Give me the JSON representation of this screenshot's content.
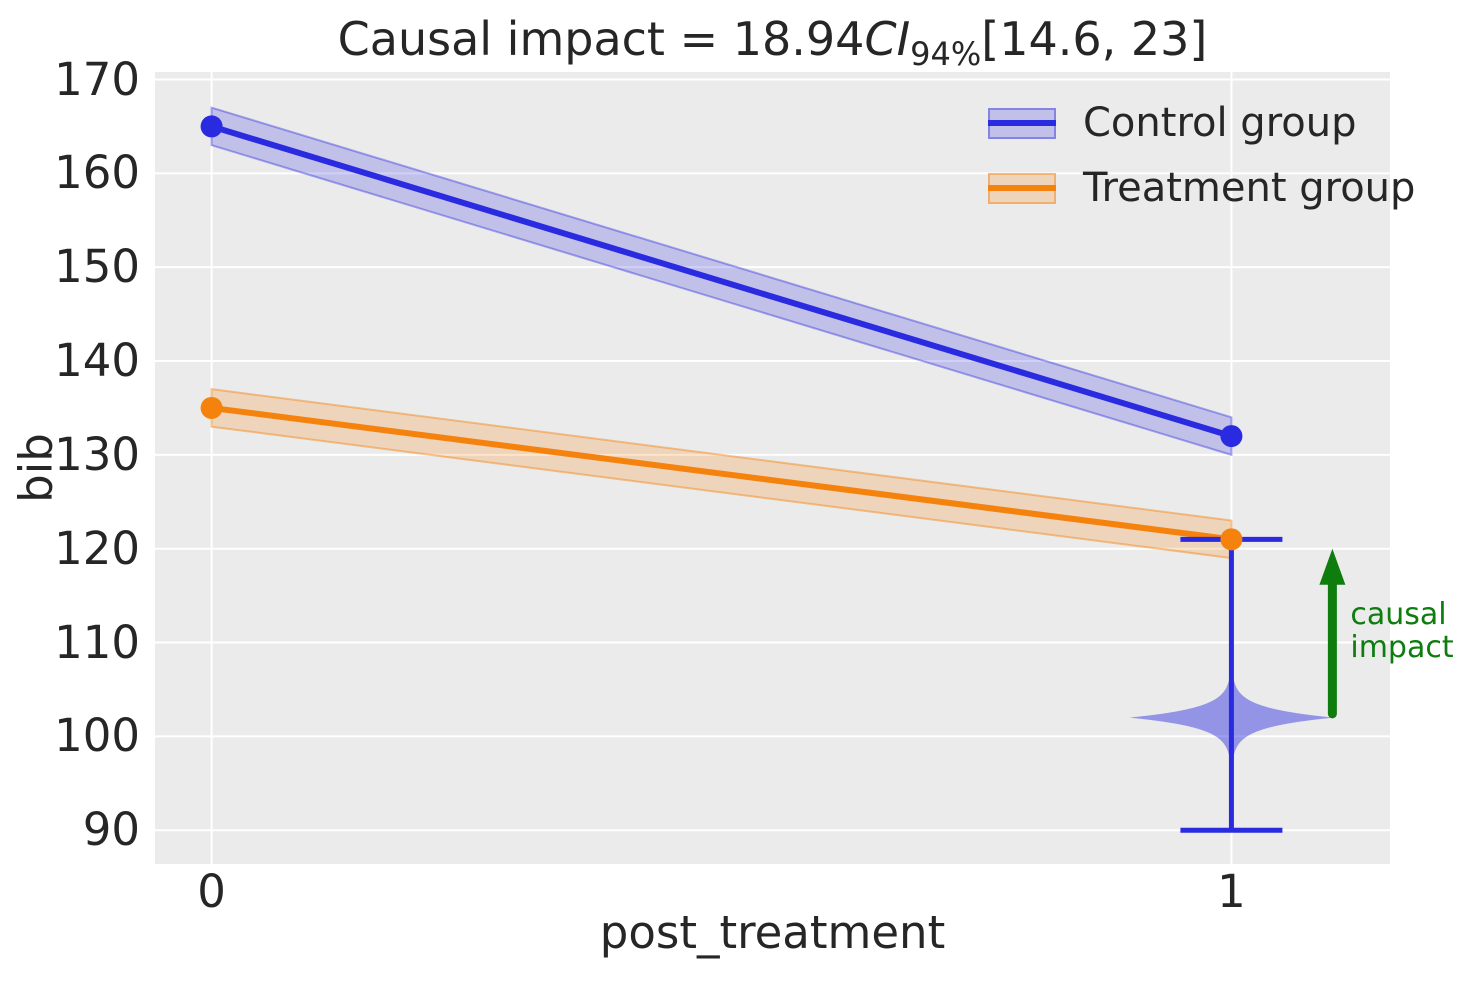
{
  "figure": {
    "background": "#ffffff"
  },
  "colors": {
    "axes_background": "#ebebeb",
    "grid": "#ffffff",
    "text": "#262626"
  },
  "chart_data": {
    "type": "line",
    "title": {
      "prefix": "Causal impact = 18.94",
      "ci": "CI",
      "ci_subscript": "94%",
      "interval": "[14.6, 23]"
    },
    "xlabel": "post_treatment",
    "ylabel": "bib",
    "xlim": [
      -0.0555,
      1.1555
    ],
    "ylim": [
      86.4,
      170.8
    ],
    "x_ticks": [
      0,
      1
    ],
    "y_ticks": [
      90,
      100,
      110,
      120,
      130,
      140,
      150,
      160,
      170
    ],
    "grid": true,
    "series": [
      {
        "name": "Control group",
        "x": [
          0,
          1
        ],
        "y": [
          165,
          132
        ],
        "ci_halfwidth": 2,
        "color": "#2a2ae0",
        "band_fill": "rgba(42,42,224,0.22)",
        "band_edge": "rgba(42,42,224,0.40)"
      },
      {
        "name": "Treatment group",
        "x": [
          0,
          1
        ],
        "y": [
          135,
          121
        ],
        "ci_halfwidth": 2,
        "color": "#f5820d",
        "band_fill": "rgba(245,130,13,0.22)",
        "band_edge": "rgba(245,130,13,0.45)"
      }
    ],
    "violin": {
      "x": 1,
      "mode": 102,
      "whisker_low": 90,
      "whisker_high": 121,
      "max_halfwidth_x": 0.1,
      "cap_halfwidth_x": 0.05,
      "fill": "rgba(42,42,224,0.45)",
      "line_color": "#2a2ae0"
    },
    "arrow": {
      "x": 1.099,
      "y_from": 102.4,
      "y_to": 120,
      "color": "#0e7d0e",
      "label": "causal\nimpact"
    },
    "legend": {
      "position": "upper right",
      "entries": [
        "Control group",
        "Treatment group"
      ]
    }
  }
}
